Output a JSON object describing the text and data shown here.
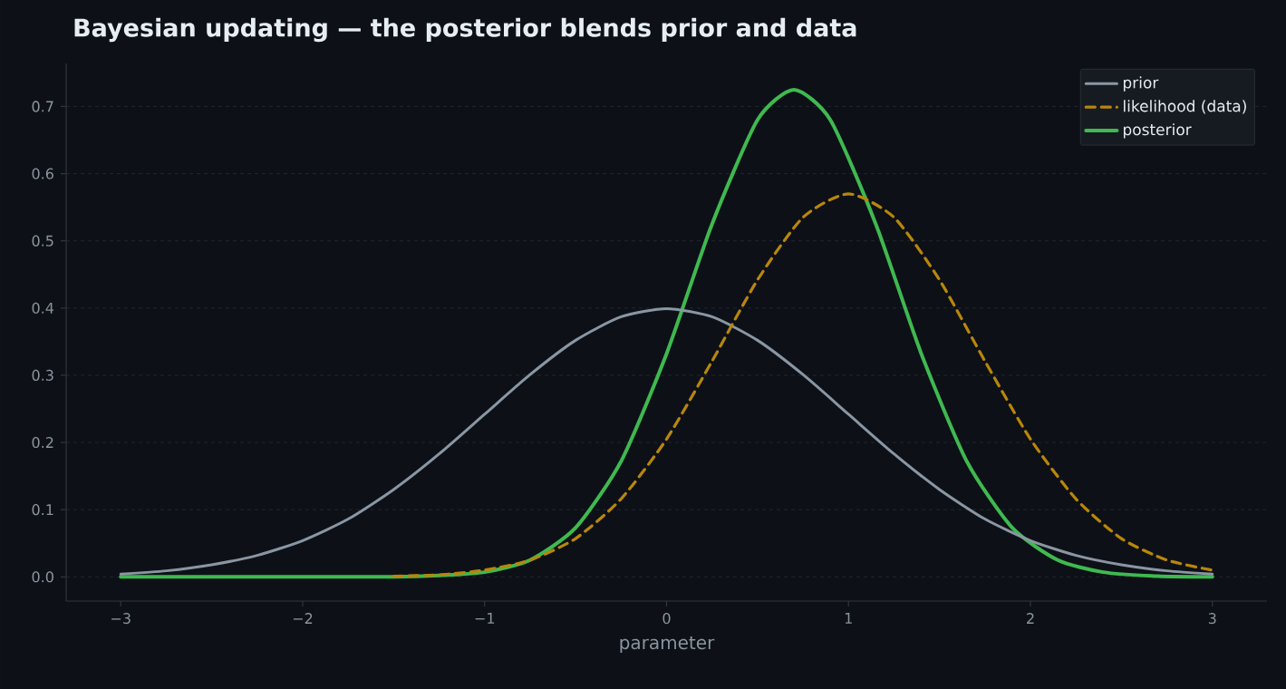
{
  "chart_data": {
    "type": "line",
    "title": "Bayesian updating — the posterior blends prior and data",
    "xlabel": "parameter",
    "xlim": [
      -3.3,
      3.3
    ],
    "ylim": [
      -0.036,
      0.764
    ],
    "xticks": [
      {
        "value": -3,
        "label": "−3"
      },
      {
        "value": -2,
        "label": "−2"
      },
      {
        "value": -1,
        "label": "−1"
      },
      {
        "value": 0,
        "label": "0"
      },
      {
        "value": 1,
        "label": "1"
      },
      {
        "value": 2,
        "label": "2"
      },
      {
        "value": 3,
        "label": "3"
      }
    ],
    "yticks": [
      {
        "value": 0,
        "label": "0.0"
      },
      {
        "value": 0.1,
        "label": "0.1"
      },
      {
        "value": 0.2,
        "label": "0.2"
      },
      {
        "value": 0.3,
        "label": "0.3"
      },
      {
        "value": 0.4,
        "label": "0.4"
      },
      {
        "value": 0.5,
        "label": "0.5"
      },
      {
        "value": 0.6,
        "label": "0.6"
      },
      {
        "value": 0.7,
        "label": "0.7"
      }
    ],
    "grid": "y",
    "legend": "top right",
    "marker": "none",
    "series": [
      {
        "name": "prior",
        "color": "#8b96a3",
        "line_style": "solid",
        "x": [
          -3,
          -2.75,
          -2.5,
          -2.25,
          -2,
          -1.75,
          -1.5,
          -1.25,
          -1,
          -0.75,
          -0.5,
          -0.25,
          0,
          0.25,
          0.5,
          0.75,
          1,
          1.25,
          1.5,
          1.75,
          2,
          2.25,
          2.5,
          2.75,
          3
        ],
        "values": [
          0.004,
          0.009,
          0.018,
          0.032,
          0.054,
          0.086,
          0.13,
          0.183,
          0.242,
          0.301,
          0.352,
          0.387,
          0.399,
          0.387,
          0.352,
          0.301,
          0.242,
          0.183,
          0.13,
          0.086,
          0.054,
          0.032,
          0.018,
          0.009,
          0.004
        ]
      },
      {
        "name": "likelihood (data)",
        "color": "#b8860b",
        "line_style": "dashed",
        "x": [
          -1.5,
          -1.25,
          -1,
          -0.75,
          -0.5,
          -0.25,
          0,
          0.25,
          0.5,
          0.75,
          1,
          1.25,
          1.5,
          1.75,
          2,
          2.25,
          2.5,
          2.75,
          3
        ],
        "values": [
          0.001,
          0.003,
          0.01,
          0.025,
          0.057,
          0.116,
          0.205,
          0.321,
          0.442,
          0.535,
          0.57,
          0.535,
          0.442,
          0.321,
          0.205,
          0.116,
          0.057,
          0.025,
          0.01
        ]
      },
      {
        "name": "posterior",
        "color": "#3fb950",
        "line_style": "solid",
        "x": [
          -3,
          -2,
          -1.5,
          -1.25,
          -1,
          -0.75,
          -0.5,
          -0.25,
          0,
          0.25,
          0.5,
          0.7,
          0.9,
          1.15,
          1.4,
          1.65,
          1.9,
          2.15,
          2.4,
          2.7,
          3
        ],
        "values": [
          0,
          0,
          0,
          0.002,
          0.007,
          0.025,
          0.073,
          0.172,
          0.332,
          0.525,
          0.68,
          0.725,
          0.68,
          0.525,
          0.332,
          0.172,
          0.073,
          0.025,
          0.007,
          0.001,
          0
        ]
      }
    ]
  }
}
